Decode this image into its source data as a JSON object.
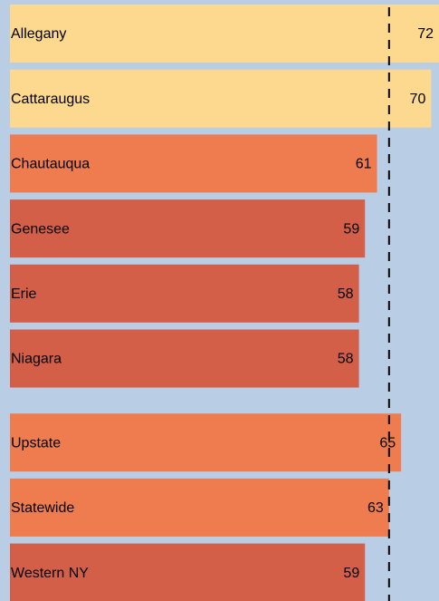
{
  "chart_data": {
    "type": "hbar",
    "categories": [
      "Allegany",
      "Cattaraugus",
      "Chautauqua",
      "Genesee",
      "Erie",
      "Niagara",
      "Upstate",
      "Statewide",
      "Western NY"
    ],
    "values": [
      72,
      70,
      61,
      59,
      58,
      58,
      65,
      63,
      59
    ],
    "colors": [
      "#fdd98f",
      "#fdd98f",
      "#ee7c4e",
      "#d45f49",
      "#d45f49",
      "#d45f49",
      "#ee7c4e",
      "#ee7c4e",
      "#d45f49"
    ],
    "xlim": [
      0,
      71.3
    ],
    "reference_line": 63
  }
}
